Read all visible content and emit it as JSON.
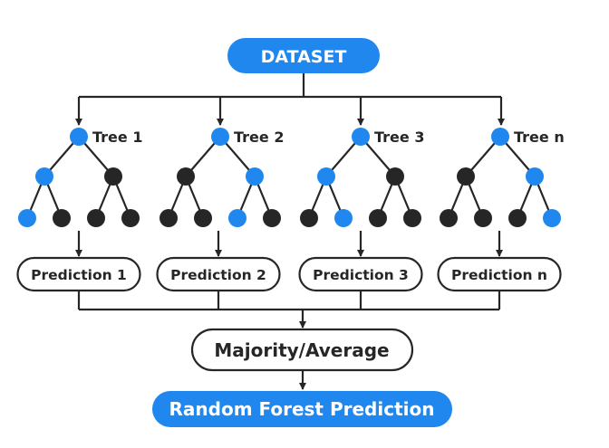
{
  "colors": {
    "blue": "#1f87ee",
    "black": "#262626",
    "line": "#262626",
    "pill_text": "#ffffff",
    "background": "#ffffff"
  },
  "dataset": {
    "label": "DATASET"
  },
  "trees": [
    {
      "label": "Tree 1",
      "prediction": "Prediction 1",
      "node_colors": {
        "root": "blue",
        "mid": [
          "blue",
          "black"
        ],
        "leaves": [
          "blue",
          "black",
          "black",
          "black"
        ]
      }
    },
    {
      "label": "Tree 2",
      "prediction": "Prediction 2",
      "node_colors": {
        "root": "blue",
        "mid": [
          "black",
          "blue"
        ],
        "leaves": [
          "black",
          "black",
          "blue",
          "black"
        ]
      }
    },
    {
      "label": "Tree 3",
      "prediction": "Prediction 3",
      "node_colors": {
        "root": "blue",
        "mid": [
          "blue",
          "black"
        ],
        "leaves": [
          "black",
          "blue",
          "black",
          "black"
        ]
      }
    },
    {
      "label": "Tree n",
      "prediction": "Prediction n",
      "node_colors": {
        "root": "blue",
        "mid": [
          "black",
          "blue"
        ],
        "leaves": [
          "black",
          "black",
          "black",
          "blue"
        ]
      }
    }
  ],
  "aggregate": {
    "label": "Majority/Average"
  },
  "result": {
    "label": "Random Forest Prediction"
  }
}
